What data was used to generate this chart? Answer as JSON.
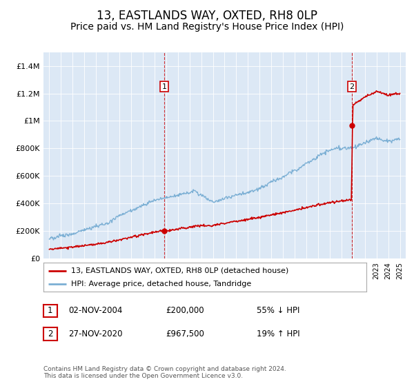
{
  "title": "13, EASTLANDS WAY, OXTED, RH8 0LP",
  "subtitle": "Price paid vs. HM Land Registry's House Price Index (HPI)",
  "title_fontsize": 12,
  "subtitle_fontsize": 10,
  "ylim": [
    0,
    1500000
  ],
  "yticks": [
    0,
    200000,
    400000,
    600000,
    800000,
    1000000,
    1200000,
    1400000
  ],
  "ytick_labels": [
    "£0",
    "£200K",
    "£400K",
    "£600K",
    "£800K",
    "£1M",
    "£1.2M",
    "£1.4M"
  ],
  "hpi_color": "#7bafd4",
  "property_color": "#cc0000",
  "sale1_date": 2004.84,
  "sale1_price": 200000,
  "sale1_label": "1",
  "sale2_date": 2020.9,
  "sale2_price": 967500,
  "sale2_label": "2",
  "legend_property": "13, EASTLANDS WAY, OXTED, RH8 0LP (detached house)",
  "legend_hpi": "HPI: Average price, detached house, Tandridge",
  "table_row1": [
    "1",
    "02-NOV-2004",
    "£200,000",
    "55% ↓ HPI"
  ],
  "table_row2": [
    "2",
    "27-NOV-2020",
    "£967,500",
    "19% ↑ HPI"
  ],
  "footnote": "Contains HM Land Registry data © Crown copyright and database right 2024.\nThis data is licensed under the Open Government Licence v3.0.",
  "background_color": "#ffffff",
  "plot_bg_color": "#dce8f5"
}
